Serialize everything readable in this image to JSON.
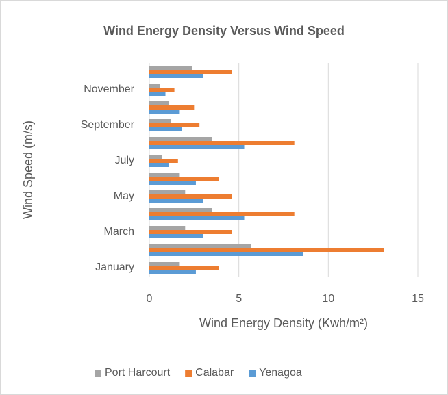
{
  "chart_data": {
    "type": "bar",
    "orientation": "horizontal",
    "title": "Wind Energy Density Versus Wind Speed",
    "x_label": "Wind Energy Density (Kwh/m²)",
    "y_label": "Wind Speed (m/s)",
    "categories": [
      "January",
      null,
      "March",
      null,
      "May",
      null,
      "July",
      null,
      "September",
      null,
      "November",
      null
    ],
    "series": [
      {
        "name": "Port Harcourt",
        "color": "#a5a5a5",
        "values": [
          1.7,
          5.7,
          2.0,
          3.5,
          2.0,
          1.7,
          0.7,
          3.5,
          1.2,
          1.1,
          0.6,
          2.4
        ]
      },
      {
        "name": "Calabar",
        "color": "#ed7d31",
        "values": [
          3.9,
          13.1,
          4.6,
          8.1,
          4.6,
          3.9,
          1.6,
          8.1,
          2.8,
          2.5,
          1.4,
          4.6
        ]
      },
      {
        "name": "Yenagoa",
        "color": "#5b9bd5",
        "values": [
          2.6,
          8.6,
          3.0,
          5.3,
          3.0,
          2.6,
          1.1,
          5.3,
          1.8,
          1.7,
          0.9,
          3.0
        ]
      }
    ],
    "xlim": [
      0,
      15
    ],
    "xticks": [
      0,
      5,
      10,
      15
    ],
    "grid": true,
    "legend": "bottom"
  }
}
